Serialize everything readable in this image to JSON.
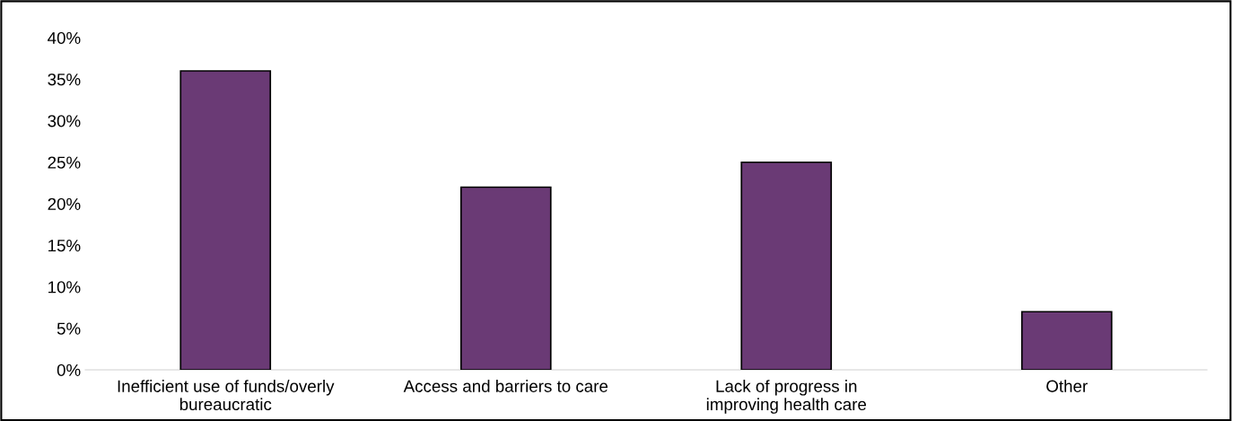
{
  "chart_data": {
    "type": "bar",
    "categories": [
      "Inefficient use of funds/overly\nbureaucratic",
      "Access and barriers to care",
      "Lack of progress in\nimproving health care",
      "Other"
    ],
    "values": [
      36,
      22,
      25,
      7
    ],
    "color": "#6a3a75",
    "ylim": [
      0,
      40
    ],
    "yticks": [
      {
        "value": 0,
        "label": "0%"
      },
      {
        "value": 5,
        "label": "5%"
      },
      {
        "value": 10,
        "label": "10%"
      },
      {
        "value": 15,
        "label": "15%"
      },
      {
        "value": 20,
        "label": "20%"
      },
      {
        "value": 25,
        "label": "25%"
      },
      {
        "value": 30,
        "label": "30%"
      },
      {
        "value": 35,
        "label": "35%"
      },
      {
        "value": 40,
        "label": "40%"
      }
    ],
    "grid": false
  }
}
